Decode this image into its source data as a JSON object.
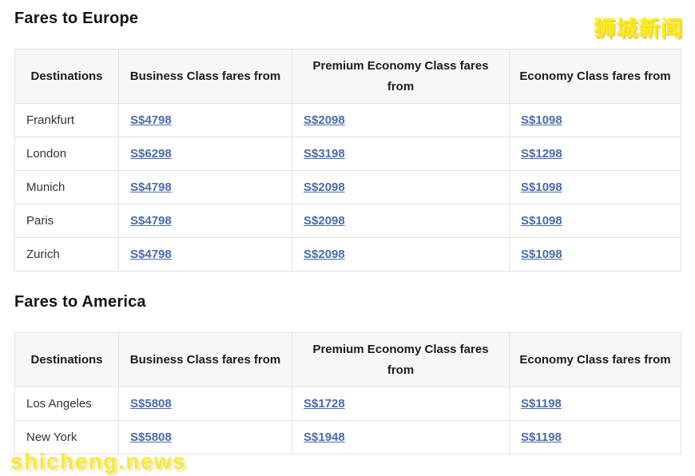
{
  "page": {
    "watermark_top_right": "狮城新闻",
    "watermark_bottom_left": "shicheng.news"
  },
  "table_columns": [
    "Destinations",
    "Business Class fares from",
    "Premium Economy Class fares from",
    "Economy Class fares from"
  ],
  "sections": [
    {
      "title": "Fares to Europe",
      "rows": [
        {
          "destination": "Frankfurt",
          "business": "S$4798",
          "premium_economy": "S$2098",
          "economy": "S$1098"
        },
        {
          "destination": "London",
          "business": "S$6298",
          "premium_economy": "S$3198",
          "economy": "S$1298"
        },
        {
          "destination": "Munich",
          "business": "S$4798",
          "premium_economy": "S$2098",
          "economy": "S$1098"
        },
        {
          "destination": "Paris",
          "business": "S$4798",
          "premium_economy": "S$2098",
          "economy": "S$1098"
        },
        {
          "destination": "Zurich",
          "business": "S$4798",
          "premium_economy": "S$2098",
          "economy": "S$1098"
        }
      ]
    },
    {
      "title": "Fares to America",
      "rows": [
        {
          "destination": "Los Angeles",
          "business": "S$5808",
          "premium_economy": "S$1728",
          "economy": "S$1198"
        },
        {
          "destination": "New York",
          "business": "S$5808",
          "premium_economy": "S$1948",
          "economy": "S$1198"
        }
      ]
    }
  ],
  "colors": {
    "link_blue": "#4a6caa",
    "header_background": "#f7f7f8",
    "table_border": "#e2e2e6",
    "watermark_yellow": "#f5e93d"
  }
}
